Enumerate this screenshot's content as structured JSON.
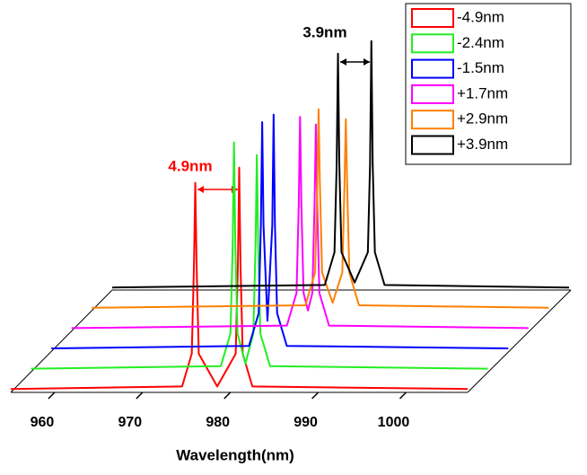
{
  "chart_data": {
    "type": "waterfall",
    "xlabel": "Wavelength(nm)",
    "xlim": [
      955,
      1007
    ],
    "xticks": [
      960,
      970,
      980,
      990,
      1000
    ],
    "ylim": [
      0,
      1
    ],
    "annotations": [
      {
        "text": "4.9nm",
        "color": "#ff0000"
      },
      {
        "text": "3.9nm",
        "color": "#000000"
      }
    ],
    "series": [
      {
        "name": "-4.9nm",
        "color": "#ff0000",
        "x": [
          955,
          974.5,
          975.6,
          975.85,
          976.0,
          976.15,
          976.4,
          978.5,
          980.6,
          980.85,
          981.0,
          981.15,
          981.4,
          982.5,
          1007
        ],
        "values": [
          0.01,
          0.02,
          0.15,
          0.5,
          0.83,
          0.5,
          0.15,
          0.02,
          0.15,
          0.5,
          0.89,
          0.5,
          0.15,
          0.02,
          0.01
        ]
      },
      {
        "name": "-2.4nm",
        "color": "#22ee22",
        "x": [
          955,
          976.6,
          977.7,
          977.95,
          978.1,
          978.25,
          978.5,
          979.4,
          980.3,
          980.55,
          980.7,
          980.85,
          981.1,
          982.2,
          1007
        ],
        "values": [
          0.01,
          0.02,
          0.15,
          0.5,
          0.91,
          0.5,
          0.15,
          0.03,
          0.15,
          0.5,
          0.86,
          0.5,
          0.15,
          0.02,
          0.01
        ]
      },
      {
        "name": "-1.5nm",
        "color": "#0000ff",
        "x": [
          955,
          977.5,
          978.6,
          978.85,
          979.0,
          979.15,
          979.6,
          980.15,
          980.3,
          980.45,
          980.7,
          981.8,
          1007
        ],
        "values": [
          0.01,
          0.02,
          0.15,
          0.5,
          0.91,
          0.5,
          0.12,
          0.5,
          0.94,
          0.5,
          0.15,
          0.02,
          0.01
        ]
      },
      {
        "name": "+1.7nm",
        "color": "#ff00ff",
        "x": [
          955,
          979.5,
          980.6,
          980.85,
          981.0,
          981.15,
          981.4,
          981.9,
          982.4,
          982.65,
          982.8,
          982.95,
          983.2,
          984.3,
          1007
        ],
        "values": [
          0.01,
          0.02,
          0.15,
          0.5,
          0.85,
          0.5,
          0.15,
          0.08,
          0.15,
          0.5,
          0.82,
          0.5,
          0.15,
          0.02,
          0.01
        ]
      },
      {
        "name": "+2.9nm",
        "color": "#ff8000",
        "x": [
          955,
          979.3,
          980.4,
          980.65,
          980.8,
          980.95,
          981.2,
          982.4,
          983.5,
          983.75,
          983.9,
          984.05,
          984.3,
          985.4,
          1007
        ],
        "values": [
          0.01,
          0.02,
          0.15,
          0.5,
          0.8,
          0.5,
          0.15,
          0.03,
          0.15,
          0.5,
          0.76,
          0.5,
          0.15,
          0.02,
          0.01
        ]
      },
      {
        "name": "+3.9nm",
        "color": "#000000",
        "x": [
          955,
          979.2,
          980.3,
          980.55,
          980.7,
          980.85,
          981.1,
          982.6,
          984.1,
          984.35,
          984.5,
          984.65,
          984.9,
          986,
          1007
        ],
        "values": [
          0.01,
          0.02,
          0.15,
          0.5,
          0.94,
          0.5,
          0.15,
          0.03,
          0.15,
          0.5,
          0.99,
          0.5,
          0.15,
          0.02,
          0.01
        ]
      }
    ]
  }
}
